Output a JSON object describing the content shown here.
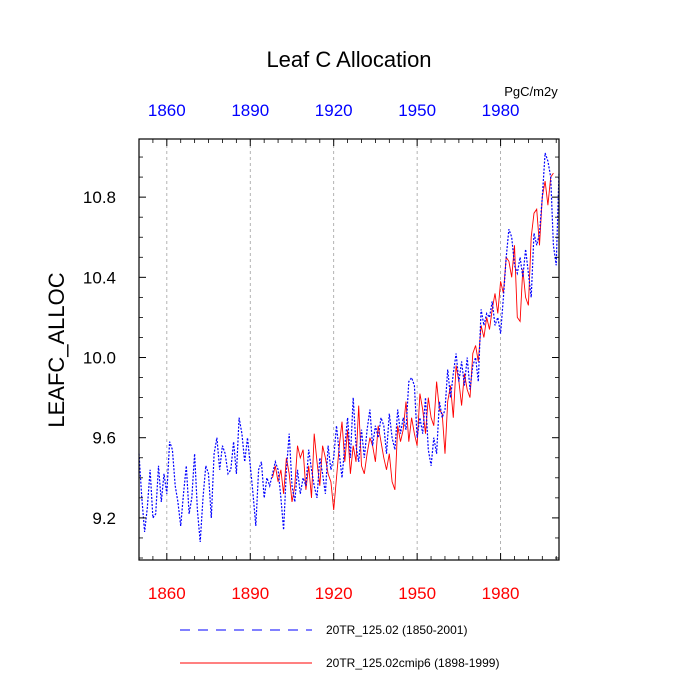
{
  "chart_data": {
    "type": "line",
    "title": "Leaf C Allocation",
    "units": "PgC/m2y",
    "ylabel": "LEAFC_ALLOC",
    "xlabel": "",
    "xlim": [
      1850,
      2001
    ],
    "ylim": [
      8.99,
      11.09
    ],
    "xticks": [
      1860,
      1890,
      1920,
      1950,
      1980
    ],
    "xtick_labels": [
      "1860",
      "1890",
      "1920",
      "1950",
      "1980"
    ],
    "yticks": [
      9.2,
      9.6,
      10.0,
      10.4,
      10.8
    ],
    "ytick_labels": [
      "9.2",
      "9.6",
      "10.0",
      "10.4",
      "10.8"
    ],
    "top_axis_color": "#0000ff",
    "bottom_axis_color": "#ff0000",
    "grid": "vertical dashed at x ticks",
    "legend_position": "bottom",
    "series": [
      {
        "name": "20TR_125.02 (1850-2001)",
        "color": "#0000ff",
        "style": "dashed",
        "x": [
          1850,
          1851,
          1852,
          1853,
          1854,
          1855,
          1856,
          1857,
          1858,
          1859,
          1860,
          1861,
          1862,
          1863,
          1864,
          1865,
          1866,
          1867,
          1868,
          1869,
          1870,
          1871,
          1872,
          1873,
          1874,
          1875,
          1876,
          1877,
          1878,
          1879,
          1880,
          1881,
          1882,
          1883,
          1884,
          1885,
          1886,
          1887,
          1888,
          1889,
          1890,
          1891,
          1892,
          1893,
          1894,
          1895,
          1896,
          1897,
          1898,
          1899,
          1900,
          1901,
          1902,
          1903,
          1904,
          1905,
          1906,
          1907,
          1908,
          1909,
          1910,
          1911,
          1912,
          1913,
          1914,
          1915,
          1916,
          1917,
          1918,
          1919,
          1920,
          1921,
          1922,
          1923,
          1924,
          1925,
          1926,
          1927,
          1928,
          1929,
          1930,
          1931,
          1932,
          1933,
          1934,
          1935,
          1936,
          1937,
          1938,
          1939,
          1940,
          1941,
          1942,
          1943,
          1944,
          1945,
          1946,
          1947,
          1948,
          1949,
          1950,
          1951,
          1952,
          1953,
          1954,
          1955,
          1956,
          1957,
          1958,
          1959,
          1960,
          1961,
          1962,
          1963,
          1964,
          1965,
          1966,
          1967,
          1968,
          1969,
          1970,
          1971,
          1972,
          1973,
          1974,
          1975,
          1976,
          1977,
          1978,
          1979,
          1980,
          1981,
          1982,
          1983,
          1984,
          1985,
          1986,
          1987,
          1988,
          1989,
          1990,
          1991,
          1992,
          1993,
          1994,
          1995,
          1996,
          1997,
          1998,
          1999,
          2000,
          2001
        ],
        "values": [
          9.52,
          9.3,
          9.13,
          9.25,
          9.44,
          9.2,
          9.22,
          9.46,
          9.28,
          9.42,
          9.32,
          9.58,
          9.54,
          9.36,
          9.28,
          9.16,
          9.32,
          9.46,
          9.22,
          9.3,
          9.52,
          9.24,
          9.08,
          9.3,
          9.46,
          9.42,
          9.2,
          9.52,
          9.6,
          9.44,
          9.56,
          9.52,
          9.42,
          9.44,
          9.58,
          9.42,
          9.7,
          9.62,
          9.48,
          9.6,
          9.46,
          9.32,
          9.16,
          9.44,
          9.48,
          9.3,
          9.4,
          9.36,
          9.42,
          9.48,
          9.44,
          9.3,
          9.14,
          9.44,
          9.62,
          9.36,
          9.28,
          9.44,
          9.32,
          9.4,
          9.36,
          9.54,
          9.44,
          9.36,
          9.3,
          9.5,
          9.42,
          9.32,
          9.56,
          9.44,
          9.5,
          9.66,
          9.52,
          9.4,
          9.56,
          9.7,
          9.5,
          9.8,
          9.56,
          9.48,
          9.64,
          9.5,
          9.64,
          9.74,
          9.56,
          9.66,
          9.6,
          9.7,
          9.66,
          9.52,
          9.72,
          9.6,
          9.54,
          9.74,
          9.62,
          9.7,
          9.64,
          9.88,
          9.9,
          9.86,
          9.6,
          9.7,
          9.62,
          9.8,
          9.54,
          9.46,
          9.6,
          9.52,
          9.78,
          9.7,
          9.74,
          9.94,
          9.8,
          9.92,
          10.02,
          9.88,
          9.98,
          9.86,
          10.0,
          9.84,
          9.96,
          10.0,
          9.88,
          10.24,
          10.16,
          10.22,
          10.2,
          10.28,
          10.16,
          10.2,
          10.12,
          10.3,
          10.5,
          10.64,
          10.6,
          10.46,
          10.42,
          10.5,
          10.4,
          10.54,
          10.42,
          10.3,
          10.62,
          10.56,
          10.62,
          10.8,
          11.02,
          10.98,
          10.9,
          10.56,
          10.46,
          10.92
        ]
      },
      {
        "name": "20TR_125.02cmip6 (1898-1999)",
        "color": "#ff0000",
        "style": "solid",
        "x": [
          1898,
          1899,
          1900,
          1901,
          1902,
          1903,
          1904,
          1905,
          1906,
          1907,
          1908,
          1909,
          1910,
          1911,
          1912,
          1913,
          1914,
          1915,
          1916,
          1917,
          1918,
          1919,
          1920,
          1921,
          1922,
          1923,
          1924,
          1925,
          1926,
          1927,
          1928,
          1929,
          1930,
          1931,
          1932,
          1933,
          1934,
          1935,
          1936,
          1937,
          1938,
          1939,
          1940,
          1941,
          1942,
          1943,
          1944,
          1945,
          1946,
          1947,
          1948,
          1949,
          1950,
          1951,
          1952,
          1953,
          1954,
          1955,
          1956,
          1957,
          1958,
          1959,
          1960,
          1961,
          1962,
          1963,
          1964,
          1965,
          1966,
          1967,
          1968,
          1969,
          1970,
          1971,
          1972,
          1973,
          1974,
          1975,
          1976,
          1977,
          1978,
          1979,
          1980,
          1981,
          1982,
          1983,
          1984,
          1985,
          1986,
          1987,
          1988,
          1989,
          1990,
          1991,
          1992,
          1993,
          1994,
          1995,
          1996,
          1997,
          1998,
          1999
        ],
        "values": [
          9.4,
          9.46,
          9.38,
          9.44,
          9.32,
          9.5,
          9.42,
          9.28,
          9.36,
          9.56,
          9.5,
          9.54,
          9.34,
          9.46,
          9.3,
          9.62,
          9.48,
          9.36,
          9.56,
          9.5,
          9.42,
          9.38,
          9.24,
          9.4,
          9.56,
          9.68,
          9.48,
          9.64,
          9.42,
          9.56,
          9.48,
          9.76,
          9.46,
          9.42,
          9.52,
          9.6,
          9.56,
          9.48,
          9.66,
          9.58,
          9.5,
          9.44,
          9.52,
          9.38,
          9.34,
          9.66,
          9.58,
          9.64,
          9.78,
          9.58,
          9.7,
          9.62,
          9.56,
          9.82,
          9.74,
          9.62,
          9.8,
          9.7,
          9.66,
          9.88,
          9.74,
          9.72,
          9.52,
          9.78,
          9.86,
          9.7,
          9.96,
          9.88,
          9.76,
          9.92,
          9.84,
          9.8,
          10.02,
          10.06,
          9.98,
          10.16,
          10.1,
          10.2,
          10.14,
          10.24,
          10.32,
          10.22,
          10.38,
          10.32,
          10.5,
          10.48,
          10.4,
          10.56,
          10.2,
          10.18,
          10.44,
          10.3,
          10.26,
          10.6,
          10.72,
          10.74,
          10.56,
          10.8,
          10.88,
          10.76,
          10.9,
          10.92
        ]
      }
    ]
  }
}
